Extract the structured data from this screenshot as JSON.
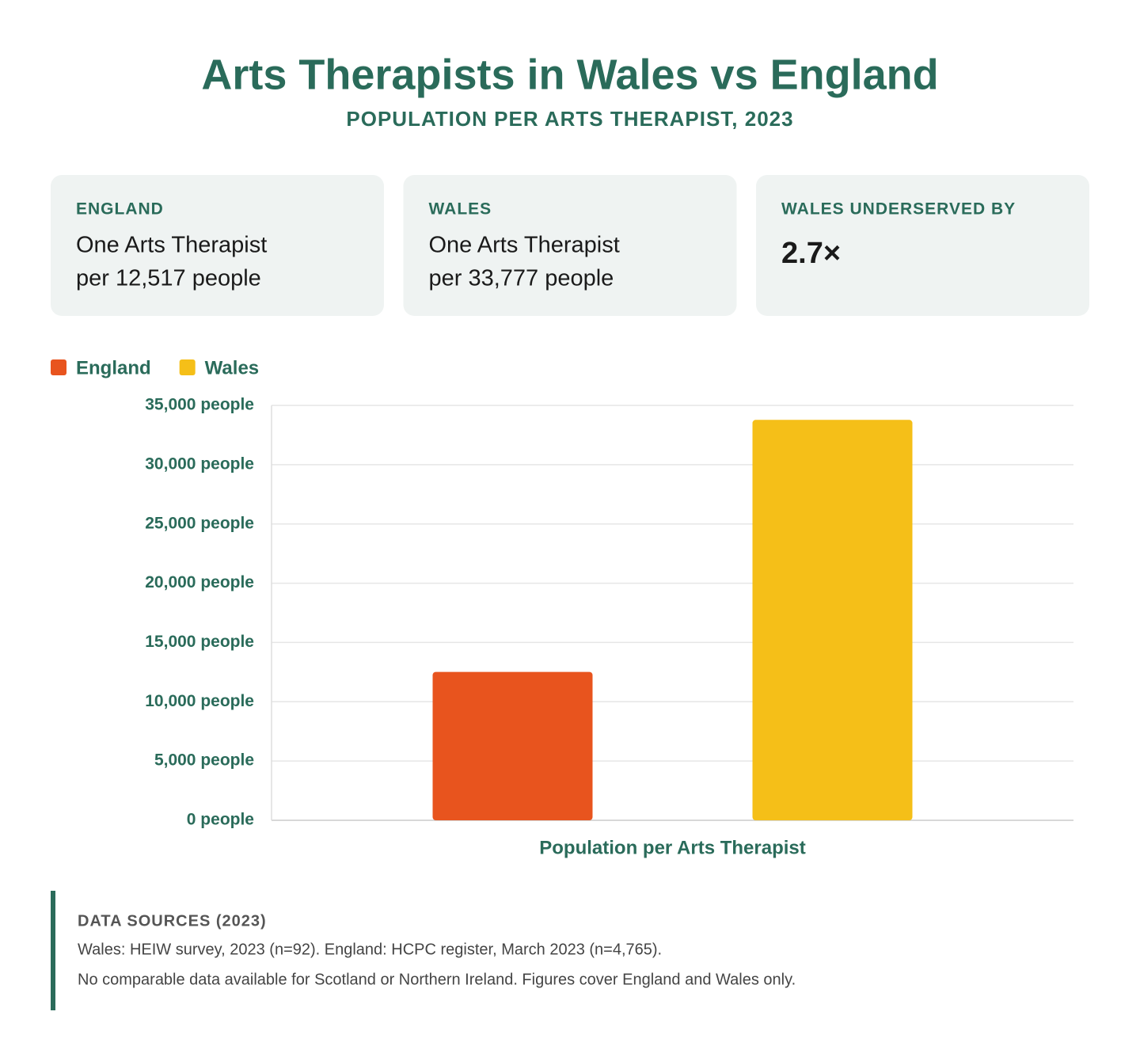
{
  "header": {
    "title": "Arts Therapists in Wales vs England",
    "subtitle": "POPULATION PER ARTS THERAPIST, 2023"
  },
  "cards": [
    {
      "label": "ENGLAND",
      "lines": [
        "One Arts Therapist",
        "per 12,517 people"
      ]
    },
    {
      "label": "WALES",
      "lines": [
        "One Arts Therapist",
        "per 33,777 people"
      ]
    },
    {
      "label": "WALES UNDERSERVED BY",
      "lines": [
        "2.7×"
      ]
    }
  ],
  "chart_data": {
    "type": "bar",
    "categories": [
      "Population per Arts Therapist"
    ],
    "series": [
      {
        "name": "England",
        "color": "#e8541e",
        "values": [
          12517
        ]
      },
      {
        "name": "Wales",
        "color": "#f5bf18",
        "values": [
          33777
        ]
      }
    ],
    "ylim": [
      0,
      35000
    ],
    "yticks": [
      {
        "value": 0,
        "label": "0 people"
      },
      {
        "value": 5000,
        "label": "5,000 people"
      },
      {
        "value": 10000,
        "label": "10,000 people"
      },
      {
        "value": 15000,
        "label": "15,000 people"
      },
      {
        "value": 20000,
        "label": "20,000 people"
      },
      {
        "value": 25000,
        "label": "25,000 people"
      },
      {
        "value": 30000,
        "label": "30,000 people"
      },
      {
        "value": 35000,
        "label": "35,000 people"
      }
    ],
    "grid": true,
    "legend": "top-left"
  },
  "sources": {
    "heading": "DATA SOURCES (2023)",
    "lines": [
      "Wales: HEIW survey, 2023 (n=92). England: HCPC register, March 2023 (n=4,765).",
      "No comparable data available for Scotland or Northern Ireland. Figures cover England and Wales only."
    ]
  }
}
